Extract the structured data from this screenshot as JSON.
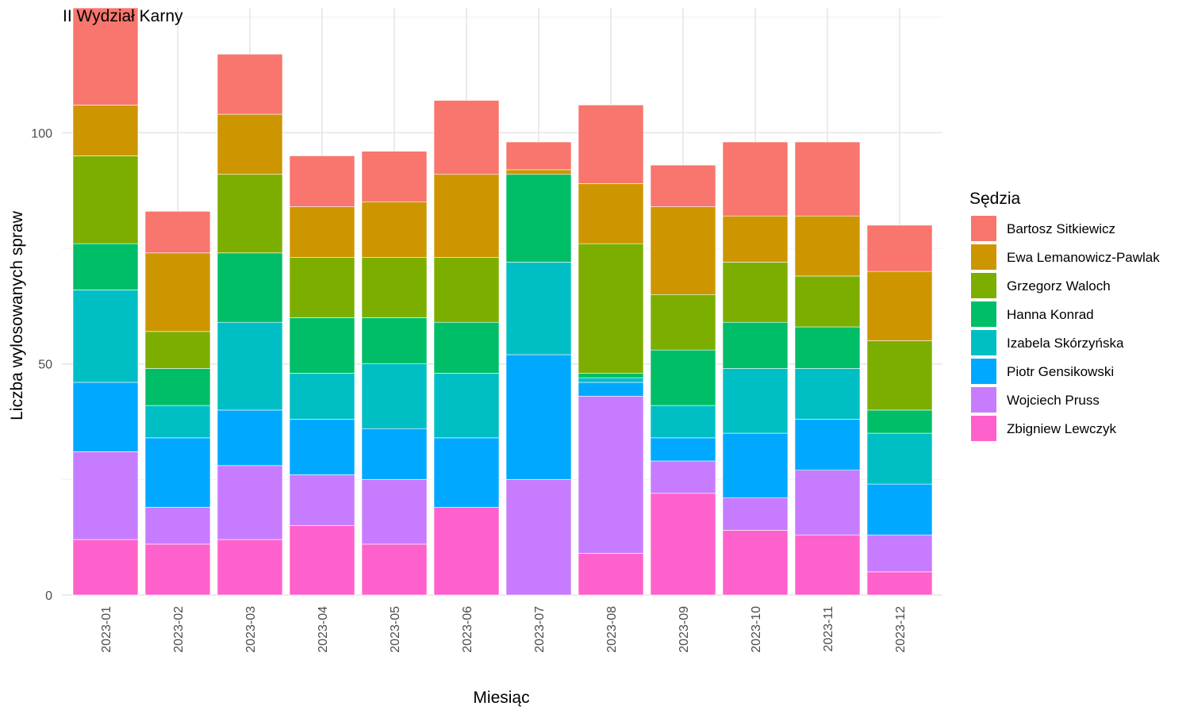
{
  "chart_data": {
    "type": "bar",
    "stacked": true,
    "title": "II Wydział Karny",
    "xlabel": "Miesiąc",
    "ylabel": "Liczba wylosowanych spraw",
    "ylim": [
      0,
      127
    ],
    "yticks": [
      0,
      50,
      100
    ],
    "grid": true,
    "legend_title": "Sędzia",
    "legend_position": "right",
    "categories": [
      "2023-01",
      "2023-02",
      "2023-03",
      "2023-04",
      "2023-05",
      "2023-06",
      "2023-07",
      "2023-08",
      "2023-09",
      "2023-10",
      "2023-11",
      "2023-12"
    ],
    "series": [
      {
        "name": "Bartosz Sitkiewicz",
        "color": "#F8766D",
        "values": [
          21,
          9,
          13,
          11,
          11,
          16,
          6,
          17,
          9,
          16,
          16,
          10
        ]
      },
      {
        "name": "Ewa Lemanowicz-Pawlak",
        "color": "#CD9600",
        "values": [
          11,
          17,
          13,
          11,
          12,
          18,
          1,
          13,
          19,
          10,
          13,
          15
        ]
      },
      {
        "name": "Grzegorz Waloch",
        "color": "#7CAE00",
        "values": [
          19,
          8,
          17,
          13,
          13,
          14,
          0,
          28,
          12,
          13,
          11,
          15
        ]
      },
      {
        "name": "Hanna Konrad",
        "color": "#00BE67",
        "values": [
          10,
          8,
          15,
          12,
          10,
          11,
          19,
          1,
          12,
          10,
          9,
          5
        ]
      },
      {
        "name": "Izabela Skórzyńska",
        "color": "#00BFC4",
        "values": [
          20,
          7,
          19,
          10,
          14,
          14,
          20,
          1,
          7,
          14,
          11,
          11
        ]
      },
      {
        "name": "Piotr Gensikowski",
        "color": "#00A9FF",
        "values": [
          15,
          15,
          12,
          12,
          11,
          15,
          27,
          3,
          5,
          14,
          11,
          11
        ]
      },
      {
        "name": "Wojciech Pruss",
        "color": "#C77CFF",
        "values": [
          19,
          8,
          16,
          11,
          14,
          0,
          25,
          34,
          7,
          7,
          14,
          8
        ]
      },
      {
        "name": "Zbigniew Lewczyk",
        "color": "#FF61CC",
        "values": [
          12,
          11,
          12,
          15,
          11,
          19,
          0,
          9,
          22,
          14,
          13,
          5
        ]
      }
    ]
  }
}
